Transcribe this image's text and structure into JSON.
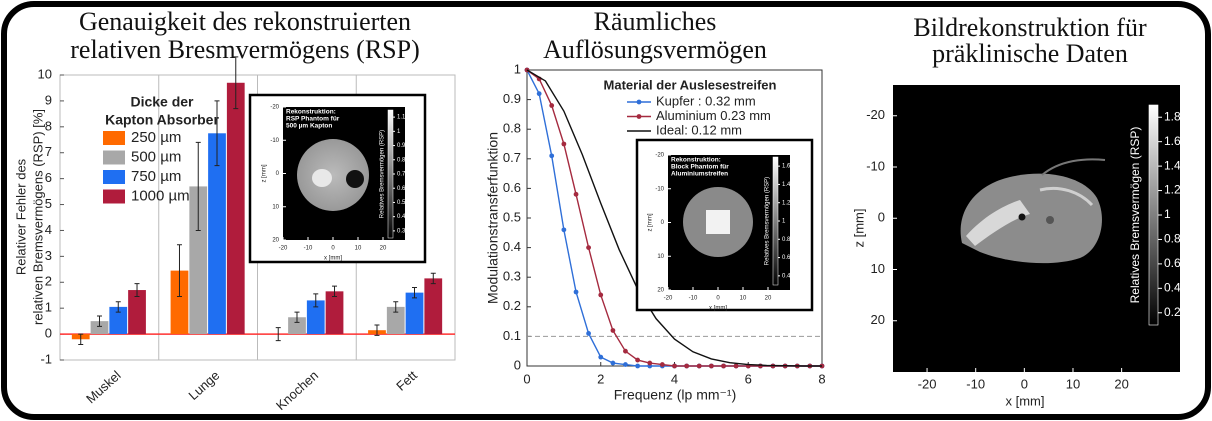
{
  "chart_data": [
    {
      "type": "bar",
      "title": [
        "Genauigkeit des rekonstruierten",
        "relativen Bresmvermögens (RSP)"
      ],
      "ylabel": [
        "Relativer Fehler des",
        "relativen Bremsvermögens (RSP) [%]"
      ],
      "categories": [
        "Muskel",
        "Lunge",
        "Knochen",
        "Fett"
      ],
      "legend_title": [
        "Dicke der",
        "Kapton Absorber"
      ],
      "series": [
        {
          "name": "250 µm",
          "color": "#ff6a00",
          "values": [
            -0.2,
            2.45,
            0.0,
            0.15
          ],
          "errors": [
            0.2,
            1.0,
            0.25,
            0.2
          ]
        },
        {
          "name": "500 µm",
          "color": "#a8a8a8",
          "values": [
            0.5,
            5.7,
            0.65,
            1.05
          ],
          "errors": [
            0.2,
            1.7,
            0.2,
            0.2
          ]
        },
        {
          "name": "750 µm",
          "color": "#1f6ff2",
          "values": [
            1.05,
            7.75,
            1.3,
            1.6
          ],
          "errors": [
            0.2,
            1.25,
            0.25,
            0.2
          ]
        },
        {
          "name": "1000 µm",
          "color": "#b01c3c",
          "values": [
            1.7,
            9.7,
            1.65,
            2.15
          ],
          "errors": [
            0.25,
            1.0,
            0.2,
            0.2
          ]
        }
      ],
      "ylim": [
        -1,
        10
      ],
      "yticks": [
        -1,
        0,
        1,
        2,
        3,
        4,
        5,
        6,
        7,
        8,
        9,
        10
      ],
      "inset": {
        "title": [
          "Rekonstruktion:",
          "RSP Phantom für",
          "500 µm Kapton"
        ],
        "xlabel": "x [mm]",
        "ylabel": "z [mm]",
        "xlim": [
          -20,
          20
        ],
        "xticks": [
          -20,
          -10,
          0,
          10,
          20
        ],
        "ylim": [
          -20,
          20
        ],
        "yticks": [
          -20,
          -10,
          0,
          10,
          20
        ],
        "colorbar_label": "Relatives Bremsvermögen (RSP)",
        "clim": [
          0.25,
          1.15
        ],
        "cticks": [
          0.3,
          0.4,
          0.5,
          0.6,
          0.7,
          0.8,
          0.9,
          1,
          1.1
        ]
      }
    },
    {
      "type": "line",
      "title": [
        "Räumliches",
        "Auflösungsvermögen"
      ],
      "xlabel": "Frequenz (lp mm⁻¹)",
      "ylabel": "Modulationstransferfunktion",
      "legend_title": "Material der Auslesestreifen",
      "series": [
        {
          "name": "Kupfer : 0.32 mm",
          "color": "#2f6fd8",
          "markers": true,
          "x": [
            0,
            0.33,
            0.67,
            1,
            1.33,
            1.67,
            2,
            2.33,
            2.67,
            3,
            3.33,
            3.67,
            4,
            4.33,
            4.67,
            5,
            5.33,
            5.67,
            6,
            6.33,
            6.67,
            7,
            7.33,
            7.67,
            8
          ],
          "values": [
            1,
            0.92,
            0.71,
            0.46,
            0.25,
            0.11,
            0.03,
            0.01,
            0.005,
            0,
            0,
            0,
            0,
            0,
            0,
            0,
            0,
            0,
            0,
            0,
            0,
            0,
            0,
            0,
            0
          ]
        },
        {
          "name": "Aluminium 0.23 mm",
          "color": "#a52a3f",
          "markers": true,
          "x": [
            0,
            0.33,
            0.67,
            1,
            1.33,
            1.67,
            2,
            2.33,
            2.67,
            3,
            3.33,
            3.67,
            4,
            4.33,
            4.67,
            5,
            5.33,
            5.67,
            6,
            6.33,
            6.67,
            7,
            7.33,
            7.67,
            8
          ],
          "values": [
            1,
            0.97,
            0.88,
            0.75,
            0.58,
            0.4,
            0.24,
            0.12,
            0.05,
            0.02,
            0.01,
            0.005,
            0,
            0,
            0,
            0,
            0,
            0,
            0,
            0,
            0,
            0,
            0,
            0,
            0
          ]
        },
        {
          "name": "Ideal: 0.12 mm",
          "color": "#111111",
          "markers": false,
          "x": [
            0,
            0.5,
            1,
            1.5,
            2,
            2.5,
            3,
            3.5,
            4,
            4.5,
            5,
            5.5,
            6,
            6.5,
            7,
            7.5,
            8
          ],
          "values": [
            1,
            0.963,
            0.861,
            0.714,
            0.55,
            0.393,
            0.26,
            0.16,
            0.091,
            0.048,
            0.024,
            0.011,
            0.005,
            0.002,
            0.001,
            0,
            0
          ]
        }
      ],
      "reference_line": 0.1,
      "xlim": [
        0,
        8
      ],
      "xticks": [
        0,
        2,
        4,
        6,
        8
      ],
      "ylim": [
        0,
        1
      ],
      "yticks": [
        0,
        0.1,
        0.2,
        0.3,
        0.4,
        0.5,
        0.6,
        0.7,
        0.8,
        0.9,
        1
      ],
      "inset": {
        "title": [
          "Rekonstruktion:",
          "Block Phantom für",
          "Aluminiumstreifen"
        ],
        "xlabel": "x [mm]",
        "ylabel": "z [mm]",
        "xlim": [
          -20,
          20
        ],
        "xticks": [
          -20,
          -10,
          0,
          10,
          20
        ],
        "ylim": [
          -20,
          20
        ],
        "yticks": [
          -20,
          -10,
          0,
          10,
          20
        ],
        "colorbar_label": "Relatives Bremsvermögen (RSP)",
        "clim": [
          0.3,
          1.7
        ],
        "cticks": [
          0.4,
          0.6,
          0.8,
          1,
          1.2,
          1.4,
          1.6
        ]
      }
    },
    {
      "type": "image",
      "title": [
        "Bildrekonstruktion für",
        "präklinische Daten"
      ],
      "xlabel": "x [mm]",
      "ylabel": "z [mm]",
      "xlim": [
        -27,
        32
      ],
      "xticks": [
        -20,
        -10,
        0,
        10,
        20
      ],
      "ylim": [
        -26,
        30
      ],
      "yticks": [
        -20,
        -10,
        0,
        10,
        20
      ],
      "colorbar_label": "Relatives Bremsvermögen (RSP)",
      "clim": [
        0.1,
        1.9
      ],
      "cticks": [
        0.2,
        0.4,
        0.6,
        0.8,
        1,
        1.2,
        1.4,
        1.6,
        1.8
      ]
    }
  ]
}
